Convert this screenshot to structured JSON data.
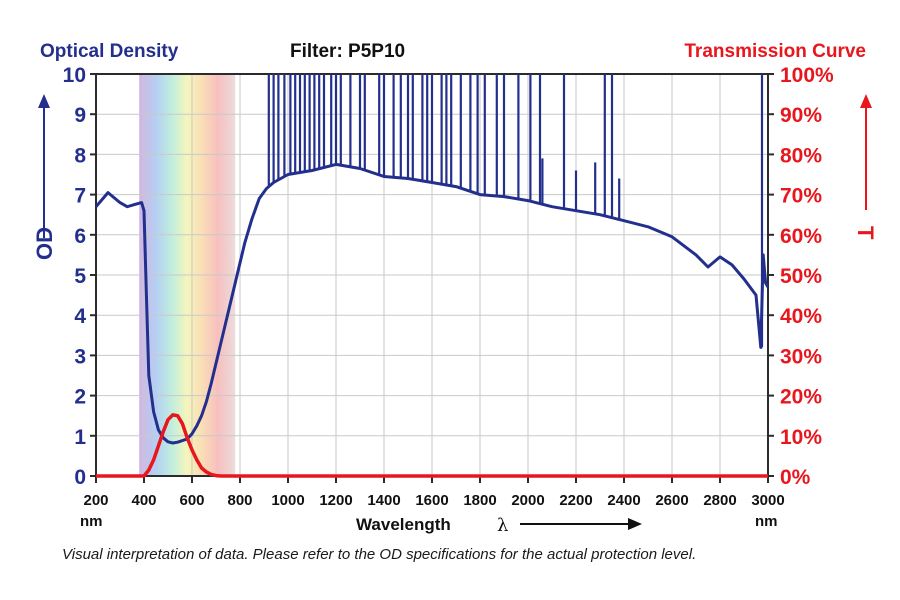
{
  "chart_data": {
    "type": "line",
    "title": "Filter: P5P10",
    "caption": "Visual interpretation of data. Please refer to the OD specifications for the actual protection level.",
    "xlabel": "Wavelength",
    "xlabel_symbol": "λ",
    "x_unit": "nm",
    "xlim": [
      200,
      3000
    ],
    "x_ticks": [
      "200",
      "400",
      "600",
      "800",
      "1000",
      "1200",
      "1400",
      "1600",
      "1800",
      "2000",
      "2200",
      "2400",
      "2600",
      "2800",
      "3000"
    ],
    "left_axis": {
      "title": "Optical Density",
      "label": "OD",
      "ylim": [
        0,
        10
      ],
      "ticks": [
        "0",
        "1",
        "2",
        "3",
        "4",
        "5",
        "6",
        "7",
        "8",
        "9",
        "10"
      ],
      "color": "#232f8c"
    },
    "right_axis": {
      "title": "Transmission Curve",
      "label": "T",
      "ylim": [
        0,
        100
      ],
      "ticks": [
        "0%",
        "10%",
        "20%",
        "30%",
        "40%",
        "50%",
        "60%",
        "70%",
        "80%",
        "90%",
        "100%"
      ],
      "color": "#e8161d"
    },
    "series": [
      {
        "name": "Optical Density",
        "axis": "left",
        "color": "#232f8c",
        "x": [
          200,
          250,
          300,
          330,
          360,
          390,
          400,
          410,
          420,
          440,
          460,
          480,
          500,
          520,
          540,
          560,
          580,
          600,
          620,
          640,
          660,
          680,
          700,
          720,
          740,
          760,
          780,
          800,
          820,
          850,
          880,
          910,
          940,
          1000,
          1100,
          1200,
          1300,
          1400,
          1500,
          1600,
          1700,
          1800,
          1900,
          2000,
          2100,
          2200,
          2300,
          2400,
          2500,
          2600,
          2700,
          2750,
          2800,
          2850,
          2900,
          2950,
          2970,
          2980,
          2990,
          3000
        ],
        "y": [
          6.7,
          7.05,
          6.8,
          6.7,
          6.75,
          6.8,
          6.6,
          4.5,
          2.5,
          1.6,
          1.15,
          0.95,
          0.85,
          0.82,
          0.84,
          0.88,
          0.92,
          1.05,
          1.25,
          1.5,
          1.85,
          2.3,
          2.8,
          3.3,
          3.8,
          4.3,
          4.8,
          5.3,
          5.8,
          6.4,
          6.9,
          7.15,
          7.3,
          7.5,
          7.6,
          7.75,
          7.65,
          7.45,
          7.4,
          7.3,
          7.2,
          7.0,
          6.95,
          6.85,
          6.7,
          6.6,
          6.5,
          6.35,
          6.2,
          5.95,
          5.5,
          5.2,
          5.45,
          5.25,
          4.9,
          4.5,
          3.2,
          5.5,
          4.8,
          4.7
        ]
      },
      {
        "name": "Transmission Curve",
        "axis": "right",
        "color": "#e8161d",
        "x": [
          200,
          400,
          420,
          440,
          460,
          480,
          500,
          520,
          540,
          560,
          580,
          600,
          620,
          640,
          660,
          680,
          700,
          720,
          3000
        ],
        "y": [
          0,
          0,
          1.5,
          4,
          7.5,
          11,
          14,
          15.2,
          15,
          13,
          9.5,
          6.5,
          4,
          2,
          1,
          0.4,
          0.1,
          0,
          0
        ]
      }
    ],
    "spikes": {
      "description": "Vertical spikes of the OD trace reaching the top of the axis",
      "x": [
        920,
        940,
        960,
        985,
        1010,
        1030,
        1050,
        1070,
        1090,
        1110,
        1130,
        1150,
        1180,
        1200,
        1220,
        1260,
        1300,
        1320,
        1380,
        1400,
        1440,
        1470,
        1500,
        1520,
        1560,
        1580,
        1600,
        1640,
        1660,
        1680,
        1720,
        1760,
        1790,
        1820,
        1870,
        1900,
        1960,
        2010,
        2050,
        2060,
        2150,
        2200,
        2280,
        2320,
        2350,
        2380
      ],
      "top": [
        10,
        10,
        10,
        10,
        10,
        10,
        10,
        10,
        10,
        10,
        10,
        10,
        10,
        10,
        10,
        10,
        10,
        10,
        10,
        10,
        10,
        10,
        10,
        10,
        10,
        10,
        10,
        10,
        10,
        10,
        10,
        10,
        10,
        10,
        10,
        10,
        10,
        10,
        10,
        7.9,
        10,
        7.6,
        7.8,
        10,
        10,
        7.4
      ]
    },
    "visible_band": {
      "from": 380,
      "to": 780,
      "colors": [
        "#c9a7e0",
        "#a8c8f0",
        "#b8ecd6",
        "#f4f3b0",
        "#f8d9a8",
        "#f5b4b4",
        "#e9c9c9"
      ]
    }
  }
}
